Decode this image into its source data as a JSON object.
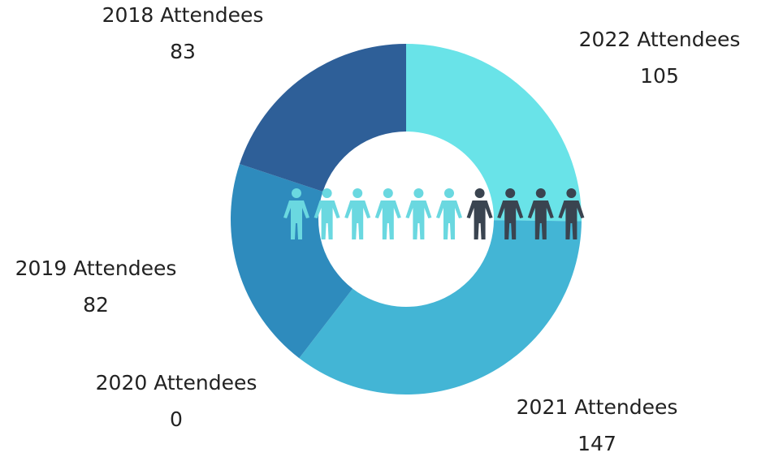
{
  "chart_data": {
    "type": "donut",
    "categories": [
      "2022 Attendees",
      "2021 Attendees",
      "2020 Attendees",
      "2019 Attendees",
      "2018 Attendees"
    ],
    "values": [
      105,
      147,
      0,
      82,
      83
    ],
    "colors": [
      "#69e3e8",
      "#43b5d5",
      "#3aa0c9",
      "#2e8bbd",
      "#2e5f98"
    ]
  }
}
